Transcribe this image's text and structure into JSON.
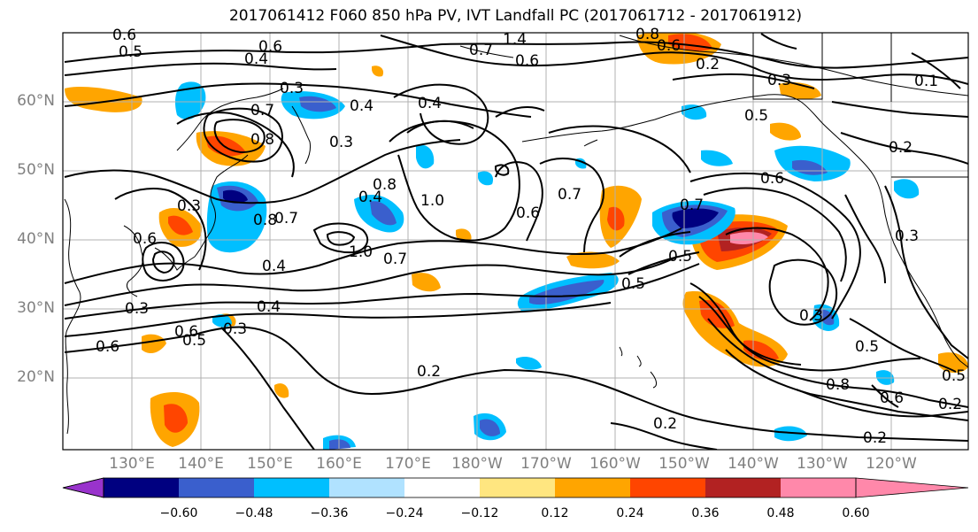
{
  "title": "2017061412 F060 850 hPa PV, IVT Landfall PC (2017061712 - 2017061912)",
  "lat_labels": [
    "60°N",
    "50°N",
    "40°N",
    "30°N",
    "20°N"
  ],
  "lon_labels": [
    "130°E",
    "140°E",
    "150°E",
    "160°E",
    "170°E",
    "180°W",
    "170°W",
    "160°W",
    "150°W",
    "140°W",
    "130°W",
    "120°W"
  ],
  "colorbar": {
    "tick_labels": [
      "−0.60",
      "−0.48",
      "−0.36",
      "−0.24",
      "−0.12",
      "0.12",
      "0.24",
      "0.36",
      "0.48",
      "0.60"
    ],
    "colors": [
      "#9933cc",
      "#000080",
      "#3a5fcd",
      "#00bfff",
      "#b0e2ff",
      "#ffffff",
      "#ffe680",
      "#ffa500",
      "#ff4500",
      "#b22222",
      "#ff88aa"
    ]
  },
  "contour_labels": [
    "0.6",
    "0.5",
    "0.4",
    "0.6",
    "1.4",
    "0.7",
    "0.6",
    "0.8",
    "0.6",
    "0.2",
    "0.3",
    "0.3",
    "0.4",
    "0.4",
    "0.5",
    "0.7",
    "0.3",
    "0.8",
    "0.8",
    "0.7",
    "0.4",
    "0.7",
    "1.0",
    "0.3",
    "0.6",
    "0.8",
    "0.7",
    "1.0",
    "0.7",
    "0.4",
    "0.5",
    "0.3",
    "0.4",
    "0.6",
    "0.3",
    "0.6",
    "0.5",
    "0.2",
    "0.2",
    "0.8",
    "0.3",
    "0.5",
    "0.6",
    "0.2",
    "0.6",
    "0.5",
    "0.2",
    "0.1",
    "0.2",
    "0.3",
    "0.6",
    "0.5"
  ]
}
